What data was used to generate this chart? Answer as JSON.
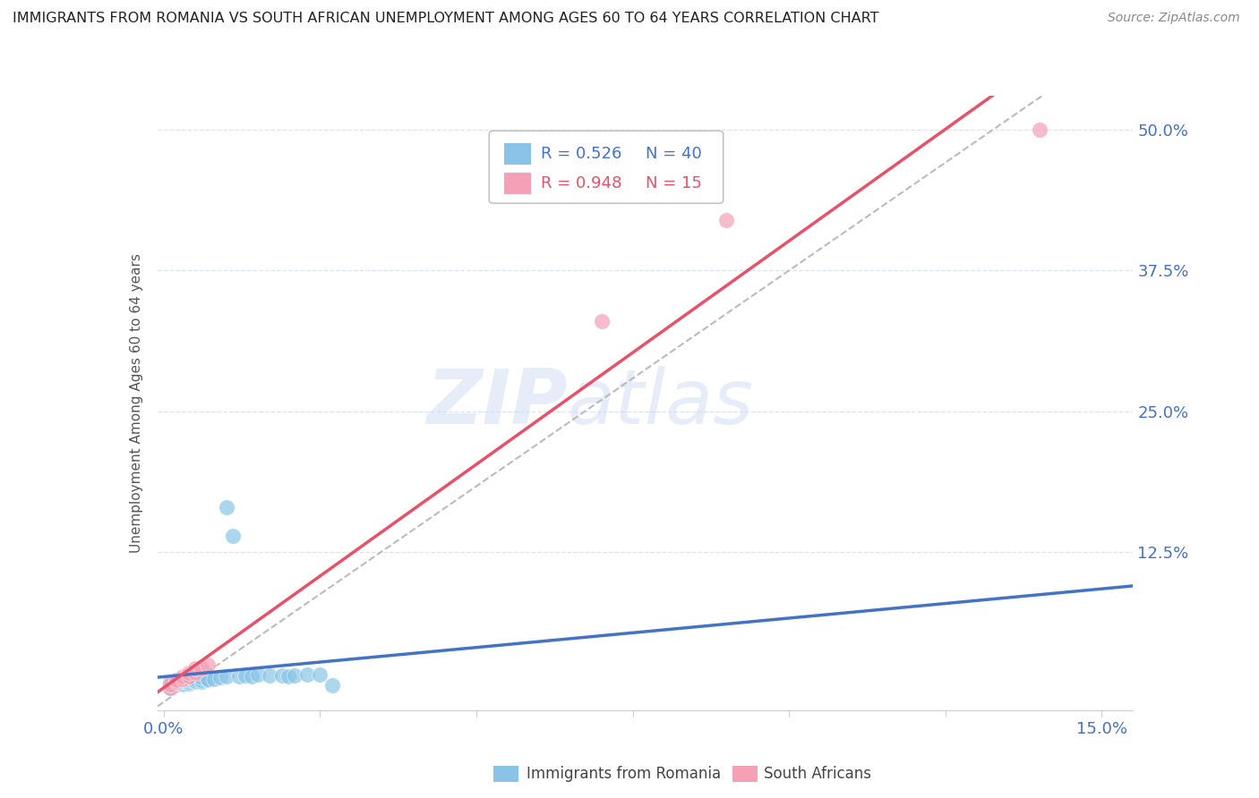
{
  "title": "IMMIGRANTS FROM ROMANIA VS SOUTH AFRICAN UNEMPLOYMENT AMONG AGES 60 TO 64 YEARS CORRELATION CHART",
  "source": "Source: ZipAtlas.com",
  "ylabel": "Unemployment Among Ages 60 to 64 years",
  "xlim": [
    -0.001,
    0.155
  ],
  "ylim": [
    -0.015,
    0.53
  ],
  "xtick_positions": [
    0.0,
    0.025,
    0.05,
    0.075,
    0.1,
    0.125,
    0.15
  ],
  "xticklabels": [
    "0.0%",
    "",
    "",
    "",
    "",
    "",
    "15.0%"
  ],
  "ytick_positions": [
    0.0,
    0.125,
    0.25,
    0.375,
    0.5
  ],
  "yticklabels_right": [
    "",
    "12.5%",
    "25.0%",
    "37.5%",
    "50.0%"
  ],
  "legend_r1": "R = 0.526",
  "legend_n1": "N = 40",
  "legend_r2": "R = 0.948",
  "legend_n2": "N = 15",
  "color_romania": "#89C4E8",
  "color_sa": "#F4A0B5",
  "color_line_romania": "#4472C4",
  "color_line_sa": "#E8516A",
  "color_dashed": "#BBBBBB",
  "color_tick_label": "#4472C4",
  "color_grid": "#C8D8F0",
  "watermark": "ZIPatlas",
  "romania_x": [
    0.001,
    0.001,
    0.001,
    0.002,
    0.002,
    0.002,
    0.002,
    0.003,
    0.003,
    0.003,
    0.003,
    0.003,
    0.004,
    0.004,
    0.004,
    0.004,
    0.005,
    0.005,
    0.005,
    0.006,
    0.006,
    0.006,
    0.007,
    0.007,
    0.008,
    0.009,
    0.01,
    0.01,
    0.011,
    0.012,
    0.013,
    0.014,
    0.015,
    0.017,
    0.019,
    0.02,
    0.021,
    0.023,
    0.025,
    0.027
  ],
  "romania_y": [
    0.005,
    0.008,
    0.01,
    0.008,
    0.01,
    0.01,
    0.012,
    0.008,
    0.009,
    0.01,
    0.011,
    0.012,
    0.009,
    0.01,
    0.012,
    0.013,
    0.01,
    0.011,
    0.013,
    0.01,
    0.012,
    0.014,
    0.012,
    0.013,
    0.013,
    0.014,
    0.165,
    0.015,
    0.14,
    0.015,
    0.016,
    0.015,
    0.017,
    0.016,
    0.016,
    0.015,
    0.016,
    0.017,
    0.017,
    0.007
  ],
  "sa_x": [
    0.001,
    0.001,
    0.002,
    0.002,
    0.003,
    0.003,
    0.004,
    0.004,
    0.005,
    0.005,
    0.006,
    0.007,
    0.07,
    0.09,
    0.14
  ],
  "sa_y": [
    0.005,
    0.008,
    0.01,
    0.012,
    0.013,
    0.015,
    0.015,
    0.018,
    0.018,
    0.022,
    0.022,
    0.025,
    0.33,
    0.42,
    0.5
  ]
}
